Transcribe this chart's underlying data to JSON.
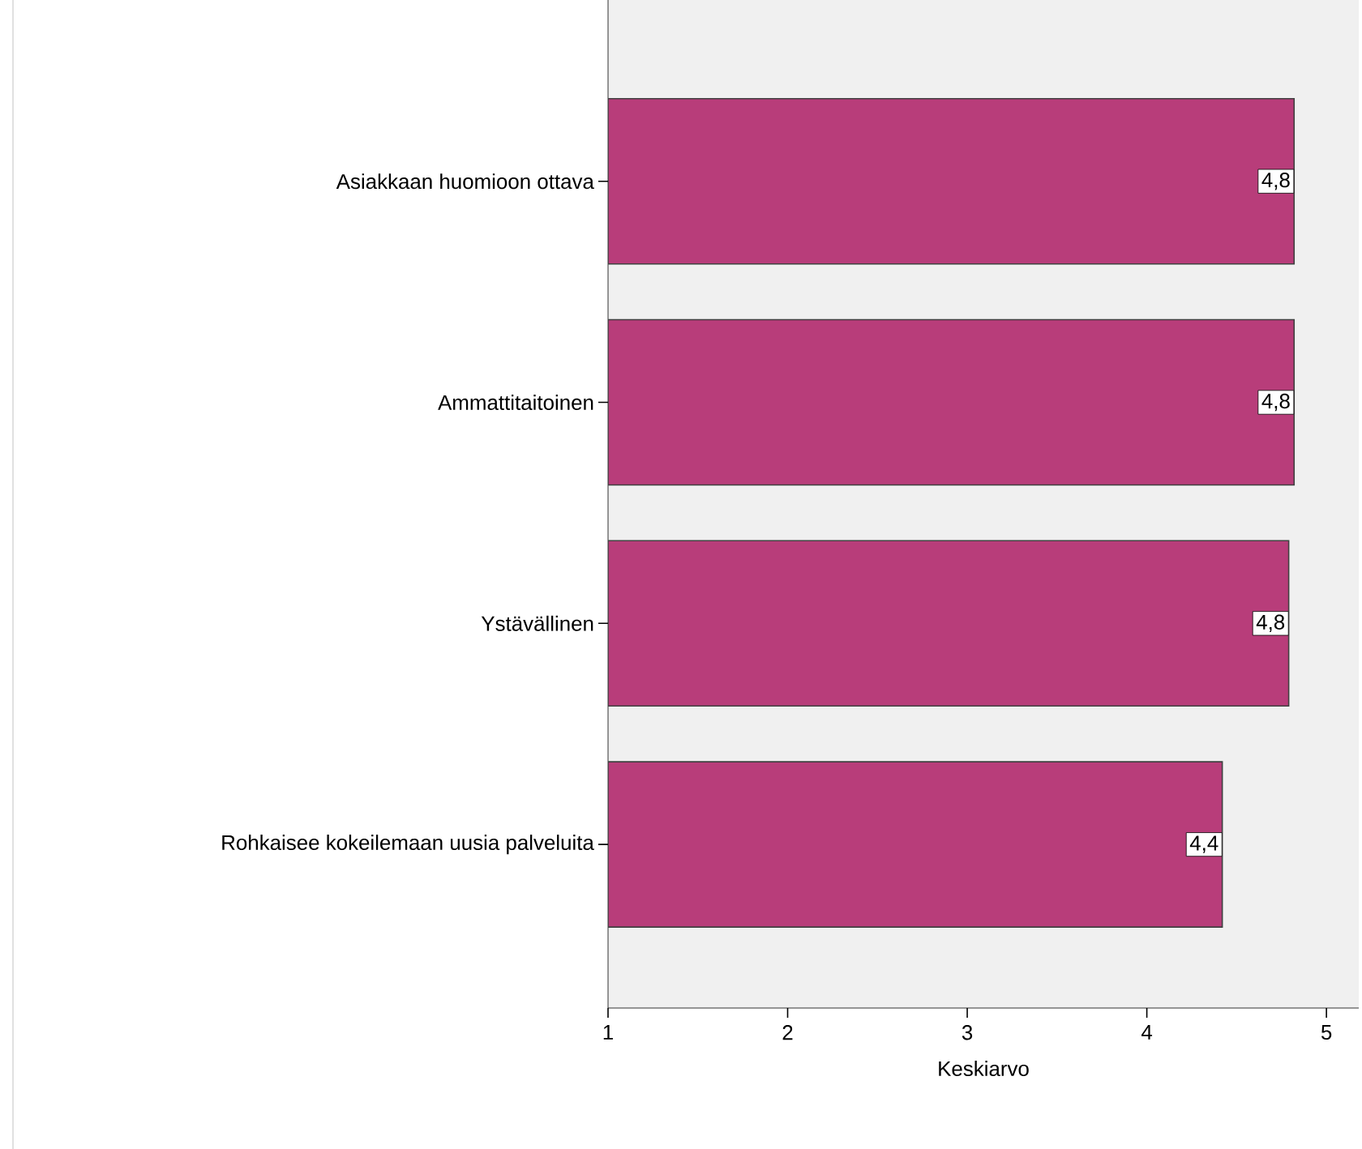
{
  "chart_data": {
    "type": "bar",
    "orientation": "horizontal",
    "categories": [
      "Asiakkaan huomioon ottava",
      "Ammattitaitoinen",
      "Ystävällinen",
      "Rohkaisee kokeilemaan uusia palveluita"
    ],
    "values": [
      4.82,
      4.82,
      4.79,
      4.42
    ],
    "value_labels": [
      "4,8",
      "4,8",
      "4,8",
      "4,4"
    ],
    "color": "#b83d7a",
    "xlim": [
      1,
      5.18
    ],
    "xticks": [
      1,
      2,
      3,
      4,
      5
    ],
    "xlabel": "Keskiarvo"
  }
}
